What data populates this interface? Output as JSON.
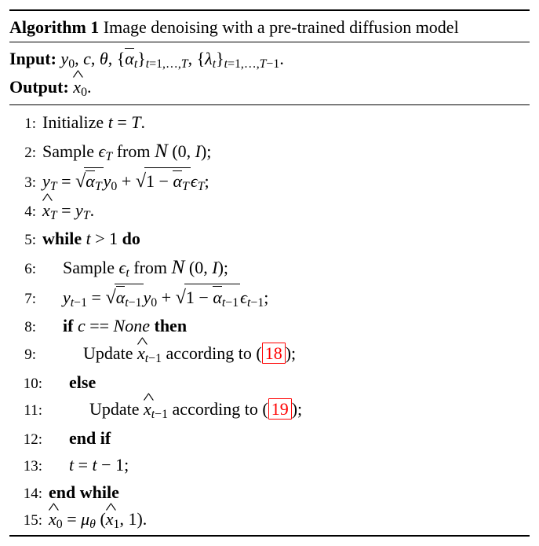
{
  "algorithm": {
    "number": "1",
    "title_prefix": "Algorithm 1",
    "title": "Image denoising with a pre-trained diffusion model",
    "input_label": "Input:",
    "output_label": "Output:",
    "input_parts": {
      "y0": "y",
      "y0_sub": "0",
      "c": "c",
      "theta": "θ",
      "alpha_set": "ᾱ",
      "alpha_sub": "t",
      "alpha_range": "t=1,…,T",
      "lambda_set": "λ",
      "lambda_sub": "t",
      "lambda_range": "t=1,…,T−1"
    },
    "output_var": "x",
    "output_sub": "0",
    "steps": {
      "s1": {
        "no": "1:",
        "text_a": "Initialize ",
        "text_b": "."
      },
      "s2": {
        "no": "2:",
        "text_a": "Sample ",
        "text_b": " from "
      },
      "s3": {
        "no": "3:"
      },
      "s4": {
        "no": "4:"
      },
      "s5": {
        "no": "5:",
        "kw1": "while ",
        "cond": "t > 1",
        "kw2": " do"
      },
      "s6": {
        "no": "6:",
        "text_a": "Sample ",
        "text_b": " from "
      },
      "s7": {
        "no": "7:"
      },
      "s8": {
        "no": "8:",
        "kw1": "if ",
        "cond_a": "c == ",
        "cond_b": "None",
        "kw2": " then"
      },
      "s9": {
        "no": "9:",
        "text_a": "Update ",
        "text_b": " according to (",
        "ref": "18",
        "text_c": ");"
      },
      "s10": {
        "no": "10:",
        "kw": "else"
      },
      "s11": {
        "no": "11:",
        "text_a": "Update ",
        "text_b": " according to (",
        "ref": "19",
        "text_c": ");"
      },
      "s12": {
        "no": "12:",
        "kw": "end if"
      },
      "s13": {
        "no": "13:"
      },
      "s14": {
        "no": "14:",
        "kw": "end while"
      },
      "s15": {
        "no": "15:"
      }
    },
    "ref_color": "#ff0000"
  }
}
